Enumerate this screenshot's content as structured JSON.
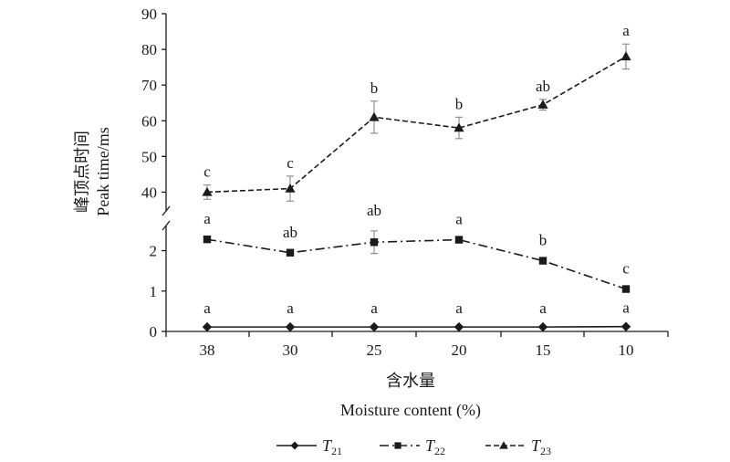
{
  "chart_data": {
    "type": "line",
    "xlabel_cn": "含水量",
    "xlabel_en": "Moisture content (%)",
    "ylabel_cn": "峰顶点时间",
    "ylabel_en": "Peak time/ms",
    "categories": [
      "38",
      "30",
      "25",
      "20",
      "15",
      "10"
    ],
    "y_upper_ticks": [
      40,
      50,
      60,
      70,
      80,
      90
    ],
    "y_lower_ticks": [
      0,
      1,
      2
    ],
    "ylim_upper": [
      35,
      90
    ],
    "ylim_lower": [
      0,
      2.6
    ],
    "axis_break": true,
    "legend_position": "bottom",
    "series": [
      {
        "name": "T21",
        "name_base": "T",
        "name_sub": "21",
        "marker": "diamond",
        "line_style": "solid",
        "values": [
          0.11,
          0.11,
          0.11,
          0.11,
          0.11,
          0.12
        ],
        "errors": [
          0,
          0,
          0,
          0,
          0,
          0
        ],
        "labels": [
          "a",
          "a",
          "a",
          "a",
          "a",
          "a"
        ]
      },
      {
        "name": "T22",
        "name_base": "T",
        "name_sub": "22",
        "marker": "square",
        "line_style": "dash-dot",
        "values": [
          2.28,
          1.95,
          2.21,
          2.27,
          1.75,
          1.05
        ],
        "errors": [
          0,
          0,
          0.28,
          0,
          0,
          0
        ],
        "labels": [
          "a",
          "ab",
          "ab",
          "a",
          "b",
          "c"
        ]
      },
      {
        "name": "T23",
        "name_base": "T",
        "name_sub": "23",
        "marker": "triangle",
        "line_style": "dashed",
        "values": [
          40,
          41,
          61,
          58,
          64.5,
          78
        ],
        "errors": [
          2,
          3.5,
          4.5,
          3,
          1.5,
          3.5
        ],
        "labels": [
          "c",
          "c",
          "b",
          "b",
          "ab",
          "a"
        ]
      }
    ]
  }
}
